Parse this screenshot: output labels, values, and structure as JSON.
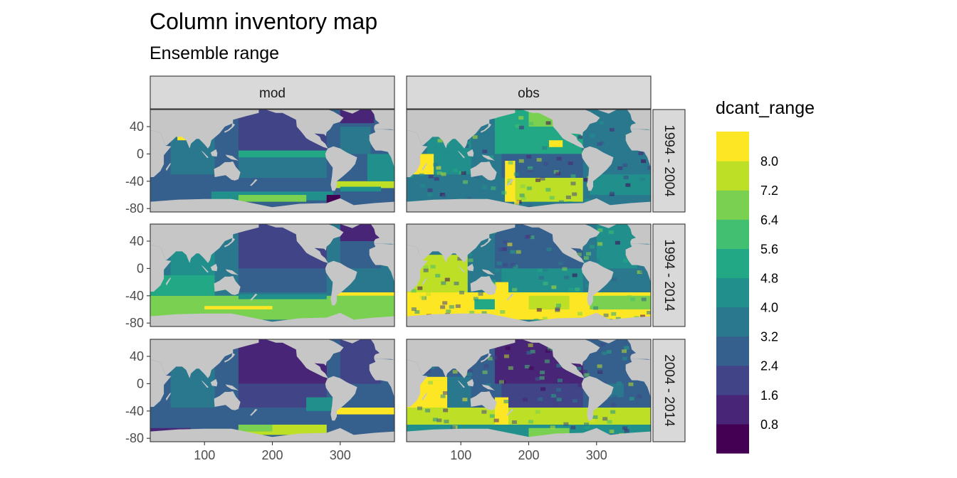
{
  "header": {
    "title": "Column inventory map",
    "subtitle": "Ensemble range"
  },
  "chart_data": {
    "type": "heatmap",
    "title": "Column inventory map",
    "subtitle": "Ensemble range",
    "facet_columns": [
      "mod",
      "obs"
    ],
    "facet_rows": [
      "1994 - 2004",
      "1994 - 2014",
      "2004 - 2014"
    ],
    "x_ticks": [
      100,
      200,
      300
    ],
    "y_ticks": [
      40,
      0,
      -40,
      -80
    ],
    "xlim": [
      20,
      380
    ],
    "ylim": [
      -85,
      65
    ],
    "legend": {
      "title": "dcant_range",
      "position": "right",
      "breaks": [
        0.8,
        1.6,
        2.4,
        3.2,
        4.0,
        4.8,
        5.6,
        6.4,
        7.2,
        8.0
      ],
      "labels": [
        "0.8",
        "1.6",
        "2.4",
        "3.2",
        "4.0",
        "4.8",
        "5.6",
        "6.4",
        "7.2",
        "8.0"
      ],
      "colors": [
        "#440154",
        "#482576",
        "#414487",
        "#35608d",
        "#2a788e",
        "#21908c",
        "#22a884",
        "#43bf71",
        "#7ad151",
        "#bddf26",
        "#fde725"
      ]
    },
    "colors": {
      "land": "#c6c6c6",
      "strip_fill": "#d9d9d9",
      "border": "#333333"
    }
  }
}
